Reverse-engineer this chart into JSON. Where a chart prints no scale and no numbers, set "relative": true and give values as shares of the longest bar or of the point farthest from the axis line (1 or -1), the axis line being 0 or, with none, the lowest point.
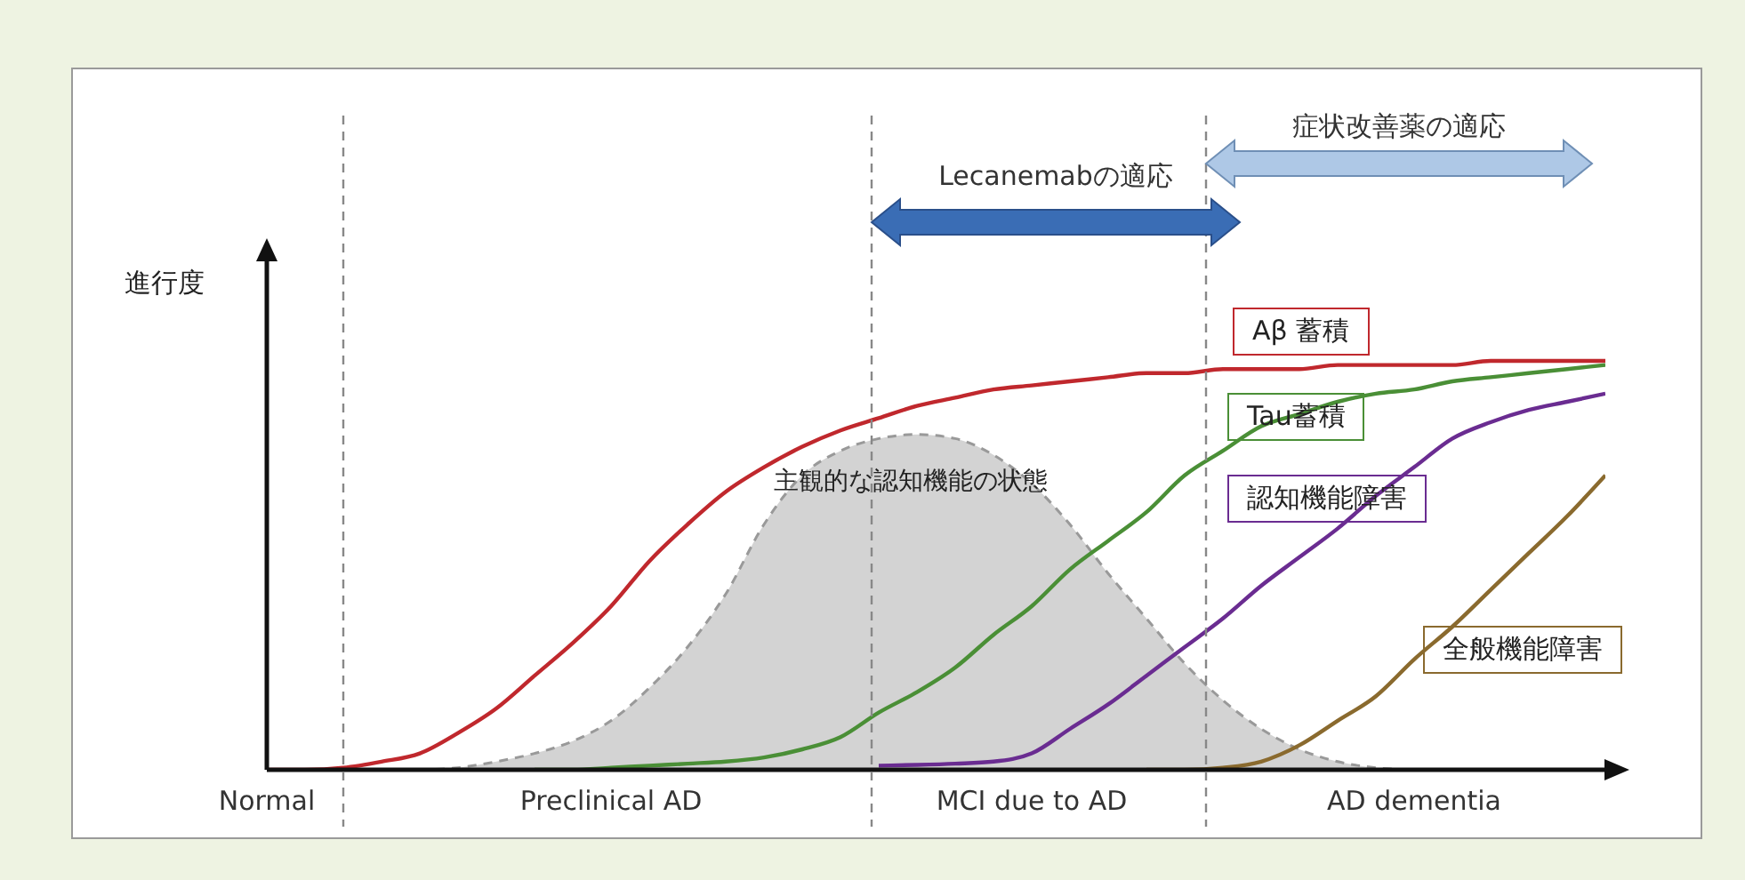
{
  "chart_data": {
    "type": "line",
    "relative": true,
    "ylabel": "進行度",
    "marker": "none",
    "categories": [
      "Normal",
      null,
      null,
      null,
      null,
      null,
      null,
      null,
      null,
      "Preclinical AD",
      null,
      null,
      null,
      null,
      null,
      null,
      null,
      null,
      null,
      null,
      "MCI due to AD",
      null,
      null,
      null,
      null,
      null,
      null,
      null,
      null,
      null,
      "AD dementia",
      null,
      null,
      null,
      null,
      null
    ],
    "series": [
      {
        "name": "主観的な認知機能の状態",
        "type": "area",
        "color": "#d3d3d3",
        "line_style": "dashed",
        "values": [
          null,
          null,
          null,
          null,
          0,
          0.005,
          0.02,
          0.04,
          0.07,
          0.12,
          0.2,
          0.3,
          0.43,
          0.6,
          0.72,
          0.78,
          0.81,
          0.82,
          0.81,
          0.77,
          0.7,
          0.6,
          0.48,
          0.37,
          0.26,
          0.17,
          0.1,
          0.05,
          0.02,
          0.005,
          0,
          null,
          null,
          null,
          null,
          null
        ]
      },
      {
        "name": "Aβ 蓄積",
        "color": "#c0282d",
        "values": [
          0,
          0,
          0.005,
          0.02,
          0.04,
          0.09,
          0.15,
          0.23,
          0.31,
          0.4,
          0.51,
          0.6,
          0.68,
          0.74,
          0.79,
          0.83,
          0.86,
          0.89,
          0.91,
          0.93,
          0.94,
          0.95,
          0.96,
          0.97,
          0.97,
          0.98,
          0.98,
          0.98,
          0.99,
          0.99,
          0.99,
          0.99,
          1,
          1,
          1,
          1
        ]
      },
      {
        "name": "Tau蓄積",
        "color": "#4a8f36",
        "values": [
          null,
          null,
          null,
          null,
          null,
          null,
          null,
          0,
          0,
          0.005,
          0.01,
          0.015,
          0.02,
          0.03,
          0.05,
          0.08,
          0.14,
          0.19,
          0.25,
          0.33,
          0.4,
          0.49,
          0.56,
          0.63,
          0.72,
          0.78,
          0.84,
          0.87,
          0.9,
          0.92,
          0.93,
          0.95,
          0.96,
          0.97,
          0.98,
          0.99
        ]
      },
      {
        "name": "認知機能障害",
        "color": "#6a2c91",
        "values": [
          null,
          null,
          null,
          null,
          null,
          null,
          null,
          null,
          null,
          null,
          null,
          null,
          null,
          null,
          null,
          null,
          0.01,
          0.012,
          0.015,
          0.02,
          0.04,
          0.1,
          0.16,
          0.23,
          0.3,
          0.37,
          0.45,
          0.52,
          0.59,
          0.67,
          0.74,
          0.81,
          0.85,
          0.88,
          0.9,
          0.92
        ]
      },
      {
        "name": "全般機能障害",
        "color": "#8a6a2e",
        "values": [
          null,
          null,
          null,
          null,
          null,
          null,
          null,
          null,
          null,
          null,
          null,
          null,
          null,
          null,
          null,
          null,
          null,
          null,
          null,
          null,
          null,
          null,
          null,
          0,
          0,
          0.005,
          0.02,
          0.06,
          0.12,
          0.18,
          0.27,
          0.35,
          0.44,
          0.53,
          0.62,
          0.72
        ]
      }
    ],
    "annotations": [
      "Lecanemabの適応",
      "症状改善薬の適応"
    ]
  }
}
